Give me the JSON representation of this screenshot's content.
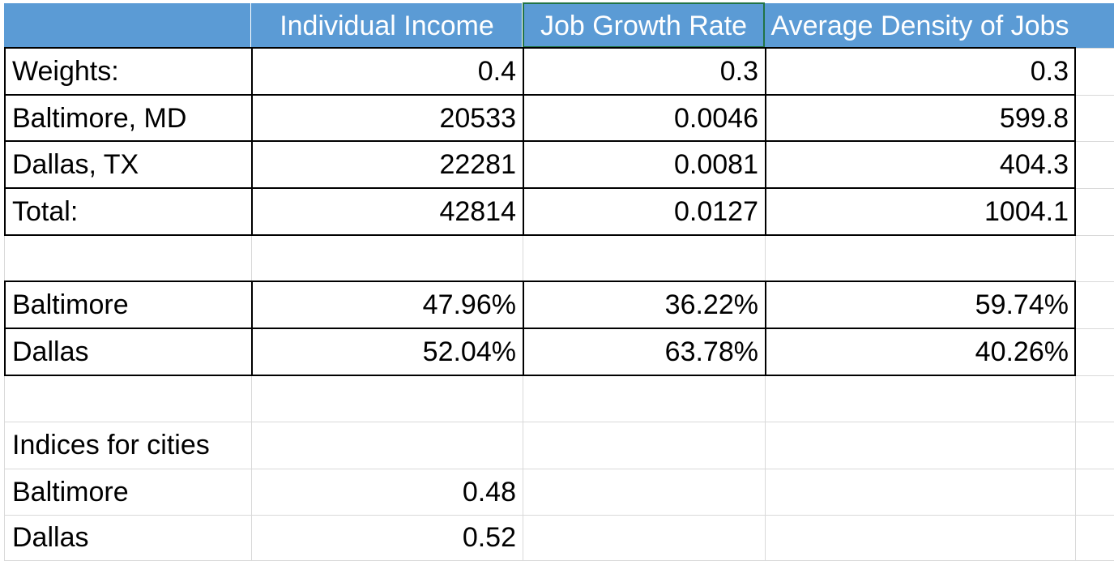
{
  "sheet": {
    "header": {
      "corner": "",
      "columns": [
        "Individual Income",
        "Job Growth Rate",
        "Average Density of Jobs"
      ],
      "accent_color": "#5b9bd5",
      "selected_header_border": "#217346"
    },
    "rows": [
      {
        "label": "Weights:",
        "values": [
          "0.4",
          "0.3",
          "0.3"
        ]
      },
      {
        "label": "Baltimore, MD",
        "values": [
          "20533",
          "0.0046",
          "599.8"
        ]
      },
      {
        "label": "Dallas, TX",
        "values": [
          "22281",
          "0.0081",
          "404.3"
        ]
      },
      {
        "label": "Total:",
        "values": [
          "42814",
          "0.0127",
          "1004.1"
        ]
      },
      {
        "label": "",
        "values": [
          "",
          "",
          ""
        ]
      },
      {
        "label": "Baltimore",
        "values": [
          "47.96%",
          "36.22%",
          "59.74%"
        ]
      },
      {
        "label": "Dallas",
        "values": [
          "52.04%",
          "63.78%",
          "40.26%"
        ]
      },
      {
        "label": "",
        "values": [
          "",
          "",
          ""
        ]
      },
      {
        "label": "Indices for cities",
        "values": [
          "",
          "",
          ""
        ]
      },
      {
        "label": "Baltimore",
        "values": [
          "0.48",
          "",
          ""
        ]
      },
      {
        "label": "Dallas",
        "values": [
          "0.52",
          "",
          ""
        ]
      }
    ]
  }
}
